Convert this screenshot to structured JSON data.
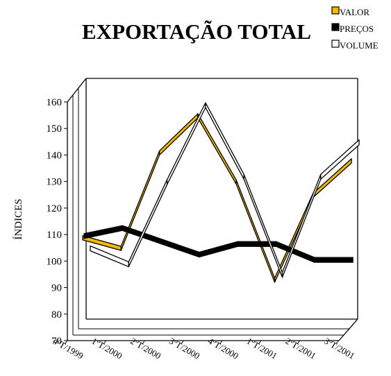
{
  "chart_data": {
    "type": "line",
    "title": "EXPORTAÇÃO TOTAL",
    "xlabel": "",
    "ylabel": "ÍNDICES",
    "categories": [
      "4ºT/1999",
      "1ºT/2000",
      "2ºT/2000",
      "3ºT/2000",
      "4ºT/2000",
      "1ºT/2001",
      "2ºT/2001",
      "3ºT/2001"
    ],
    "yticks": [
      "70",
      "80",
      "90",
      "100",
      "110",
      "120",
      "130",
      "140",
      "150",
      "160"
    ],
    "ylim": [
      70,
      160
    ],
    "grid": false,
    "legend_position": "top-right",
    "series": [
      {
        "name": "VALOR",
        "color": "#f5b800",
        "values": [
          108,
          104,
          140,
          154,
          129,
          92,
          124,
          137
        ]
      },
      {
        "name": "PREÇOS",
        "color": "#000000",
        "values": [
          108,
          111,
          106,
          101,
          105,
          105,
          99,
          99
        ]
      },
      {
        "name": "VOLUME",
        "color": "#ffffff",
        "values": [
          101,
          95,
          126,
          155,
          128,
          91,
          128,
          141
        ]
      }
    ]
  }
}
